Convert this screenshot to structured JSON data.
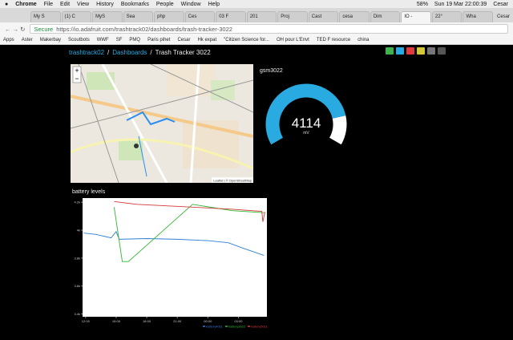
{
  "menubar": {
    "items": [
      "Chrome",
      "File",
      "Edit",
      "View",
      "History",
      "Bookmarks",
      "People",
      "Window",
      "Help"
    ],
    "battery": "58%",
    "clock": "Sun 19 Mar  22:00:39",
    "user": "Cesar"
  },
  "tabs": [
    "My S",
    "(1) C",
    "MyS",
    "Sea",
    "php",
    "Ces",
    "03 F",
    "201",
    "Proj",
    "Cast",
    "cesa",
    "Dim",
    "IO -",
    "22°",
    "Wha"
  ],
  "browser_user": "Cesar",
  "address": {
    "secure": "Secure",
    "url": "https://io.adafruit.com/trashtrack02/dashboards/trash-tracker-3022"
  },
  "bookmarks": [
    "Apps",
    "Aster",
    "Makerbay",
    "Scoutbots",
    "WWF",
    "SF",
    "PMQ",
    "Paris pihet",
    "Cesar",
    "Hk expat",
    "\"Citizen Science for...",
    "OH pour L'Envt",
    "TED F resource",
    "china"
  ],
  "breadcrumb": {
    "user": "trashtrack02",
    "sep": "/",
    "dashboards": "Dashboards",
    "dashboard": "Trash Tracker 3022"
  },
  "map": {
    "zoom_in": "+",
    "zoom_out": "−",
    "attribution": "Leaflet | © OpenStreetMap"
  },
  "gauge": {
    "title": "gsm3022",
    "value": 4114,
    "unit": "mV",
    "lim": [
      0,
      5000
    ]
  },
  "battery_chart": {
    "type": "line",
    "title": "battery levels",
    "xlim": [
      -0.3,
      17.8
    ],
    "xticks": [
      {
        "value": 0,
        "label": "12:00"
      },
      {
        "value": 3,
        "label": "15:00"
      },
      {
        "value": 6,
        "label": "18:00"
      },
      {
        "value": 9,
        "label": "21:00"
      },
      {
        "value": 12,
        "label": "00:00"
      },
      {
        "value": 15,
        "label": "03:00"
      }
    ],
    "ylim": [
      3380,
      4230
    ],
    "yticks": [
      {
        "value": 4200,
        "label": "4.2k"
      },
      {
        "value": 4000,
        "label": "4k"
      },
      {
        "value": 3800,
        "label": "3.8k"
      },
      {
        "value": 3600,
        "label": "3.6k"
      },
      {
        "value": 3400,
        "label": "3.4k"
      }
    ],
    "series": [
      {
        "name": "battery4011",
        "color": "#2f7fd6",
        "x": [
          -0.2,
          1,
          2.5,
          3,
          3.3,
          6,
          9,
          12,
          14,
          15.5,
          17.5
        ],
        "values": [
          3980,
          3970,
          3945,
          3990,
          3935,
          3940,
          3935,
          3925,
          3910,
          3870,
          3820
        ]
      },
      {
        "name": "battery3022",
        "color": "#2db82d",
        "x": [
          2.8,
          3.6,
          4.2,
          10.5,
          14.4,
          17.6
        ],
        "values": [
          4165,
          3775,
          3775,
          4185,
          4140,
          4125
        ]
      },
      {
        "name": "battery5011",
        "color": "#d23a3a",
        "x": [
          2.8,
          5,
          10.5,
          14.4,
          17.3,
          17.4,
          17.6
        ],
        "values": [
          4205,
          4185,
          4165,
          4150,
          4135,
          4060,
          4130
        ]
      }
    ]
  }
}
